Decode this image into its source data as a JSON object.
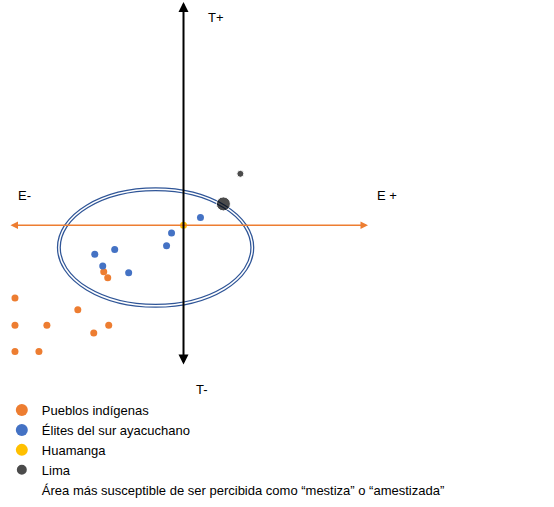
{
  "chart_data": {
    "type": "scatter",
    "tick_labels": false,
    "grid": false,
    "legend": "bottom left",
    "xlim": [
      -17.5,
      18.5
    ],
    "ylim": [
      -14.5,
      23
    ],
    "axis_labels": {
      "x_neg": "E-",
      "x_pos": "E +",
      "y_pos": "T+",
      "y_neg": "T-"
    },
    "series": [
      {
        "name": "Pueblos indígenas",
        "color": "#ED7D31",
        "marker": "circle",
        "x": [
          -16.9,
          -16.9,
          -16.9,
          -13.7,
          -14.5,
          -10.6,
          -9.0,
          -7.5,
          -8.0,
          -7.6
        ],
        "values": [
          -7.5,
          -10.3,
          -13.0,
          -10.3,
          -13.0,
          -8.7,
          -11.1,
          -10.3,
          -4.8,
          -5.4
        ]
      },
      {
        "name": "Élites del sur ayacuchano",
        "color": "#4472C4",
        "marker": "circle",
        "x": [
          -8.9,
          -6.9,
          -5.5,
          -8.1,
          -1.7,
          -1.2,
          1.7
        ],
        "values": [
          -3.0,
          -2.5,
          -4.9,
          -4.2,
          -2.1,
          -0.8,
          0.8
        ]
      },
      {
        "name": "Huamanga",
        "color": "#FFC000",
        "marker": "circle",
        "x": [
          0
        ],
        "values": [
          0
        ]
      },
      {
        "name": "Lima",
        "color": "#000000",
        "marker": "circle",
        "x": [
          4.0,
          5.7
        ],
        "values": [
          2.2,
          5.3
        ],
        "sizes": [
          2,
          1
        ]
      }
    ],
    "ellipse": {
      "name": "Área más susceptible de ser percibida como “mestiza” o “amestizada”",
      "color": "#2F5597",
      "center": [
        -2.8,
        -2.3
      ],
      "rx": 9.7,
      "ry": 6.0
    }
  }
}
